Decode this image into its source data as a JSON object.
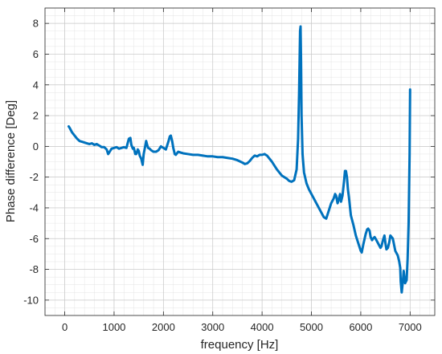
{
  "chart_data": {
    "type": "line",
    "title": "",
    "xlabel": "frequency [Hz]",
    "ylabel": "Phase difference [Deg]",
    "xlim": [
      -400,
      7500
    ],
    "ylim": [
      -11,
      9
    ],
    "xticks": [
      0,
      1000,
      2000,
      3000,
      4000,
      5000,
      6000,
      7000
    ],
    "yticks": [
      -10,
      -8,
      -6,
      -4,
      -2,
      0,
      2,
      4,
      6,
      8
    ],
    "xtick_labels": [
      "0",
      "1000",
      "2000",
      "3000",
      "4000",
      "5000",
      "6000",
      "7000"
    ],
    "ytick_labels": [
      "-10",
      "-8",
      "-6",
      "-4",
      "-2",
      "0",
      "2",
      "4",
      "6",
      "8"
    ],
    "x_minor_step": 200,
    "y_minor_step": 0.5,
    "grid": true,
    "minor_grid": true,
    "legend": false,
    "series": [
      {
        "color": "#0072BD",
        "x": [
          80,
          100,
          150,
          200,
          250,
          300,
          350,
          400,
          450,
          500,
          550,
          600,
          650,
          700,
          750,
          800,
          850,
          880,
          900,
          950,
          1000,
          1050,
          1100,
          1150,
          1200,
          1250,
          1300,
          1330,
          1350,
          1380,
          1400,
          1430,
          1450,
          1480,
          1500,
          1520,
          1550,
          1580,
          1600,
          1630,
          1650,
          1670,
          1690,
          1720,
          1750,
          1800,
          1850,
          1900,
          1950,
          2000,
          2050,
          2100,
          2130,
          2150,
          2180,
          2200,
          2230,
          2250,
          2300,
          2350,
          2400,
          2500,
          2600,
          2700,
          2800,
          2900,
          3000,
          3100,
          3200,
          3300,
          3400,
          3500,
          3600,
          3650,
          3700,
          3750,
          3800,
          3850,
          3900,
          3950,
          4000,
          4050,
          4100,
          4200,
          4300,
          4400,
          4500,
          4550,
          4600,
          4650,
          4700,
          4730,
          4750,
          4770,
          4780,
          4790,
          4800,
          4820,
          4850,
          4900,
          4950,
          5000,
          5050,
          5100,
          5150,
          5200,
          5250,
          5300,
          5350,
          5400,
          5450,
          5480,
          5500,
          5530,
          5550,
          5580,
          5600,
          5630,
          5660,
          5680,
          5700,
          5720,
          5740,
          5760,
          5780,
          5800,
          5850,
          5900,
          5950,
          6000,
          6020,
          6050,
          6100,
          6130,
          6150,
          6180,
          6200,
          6230,
          6250,
          6280,
          6300,
          6350,
          6400,
          6420,
          6450,
          6480,
          6500,
          6520,
          6550,
          6580,
          6600,
          6650,
          6700,
          6750,
          6780,
          6800,
          6810,
          6830,
          6850,
          6870,
          6900,
          6930,
          6950,
          6970,
          6990,
          7000
        ],
        "y": [
          1.3,
          1.2,
          0.9,
          0.7,
          0.5,
          0.35,
          0.3,
          0.25,
          0.2,
          0.15,
          0.2,
          0.1,
          0.15,
          0.05,
          -0.05,
          -0.05,
          -0.2,
          -0.5,
          -0.4,
          -0.15,
          -0.1,
          -0.05,
          -0.15,
          -0.1,
          -0.05,
          -0.1,
          0.5,
          0.55,
          0.1,
          -0.15,
          -0.1,
          -0.5,
          -0.5,
          -0.2,
          -0.3,
          -0.6,
          -0.8,
          -1.2,
          -0.5,
          0.0,
          0.35,
          0.1,
          -0.1,
          -0.15,
          -0.25,
          -0.35,
          -0.35,
          -0.25,
          0.0,
          -0.1,
          -0.2,
          0.3,
          0.65,
          0.7,
          0.3,
          -0.1,
          -0.5,
          -0.55,
          -0.35,
          -0.4,
          -0.45,
          -0.5,
          -0.55,
          -0.55,
          -0.6,
          -0.65,
          -0.65,
          -0.7,
          -0.7,
          -0.75,
          -0.8,
          -0.9,
          -1.05,
          -1.15,
          -1.1,
          -0.95,
          -0.75,
          -0.6,
          -0.65,
          -0.55,
          -0.55,
          -0.5,
          -0.6,
          -1.0,
          -1.5,
          -1.9,
          -2.1,
          -2.25,
          -2.3,
          -2.2,
          -1.5,
          0.5,
          3.5,
          7.5,
          7.8,
          5.5,
          2.0,
          -0.5,
          -1.7,
          -2.4,
          -2.8,
          -3.1,
          -3.4,
          -3.7,
          -4.0,
          -4.3,
          -4.6,
          -4.7,
          -4.2,
          -3.7,
          -3.4,
          -3.1,
          -3.2,
          -3.7,
          -3.5,
          -3.1,
          -3.6,
          -3.2,
          -2.3,
          -1.6,
          -1.6,
          -2.0,
          -2.8,
          -3.3,
          -3.9,
          -4.5,
          -5.1,
          -5.8,
          -6.3,
          -6.8,
          -6.9,
          -6.4,
          -5.7,
          -5.4,
          -5.35,
          -5.5,
          -5.9,
          -6.1,
          -6.0,
          -5.9,
          -6.0,
          -6.3,
          -6.6,
          -6.5,
          -6.1,
          -5.8,
          -6.3,
          -6.7,
          -6.6,
          -6.2,
          -5.8,
          -6.0,
          -6.8,
          -7.1,
          -7.5,
          -7.9,
          -8.8,
          -9.5,
          -8.9,
          -8.1,
          -8.9,
          -8.7,
          -7.3,
          -5.0,
          -0.5,
          3.7
        ]
      }
    ]
  }
}
